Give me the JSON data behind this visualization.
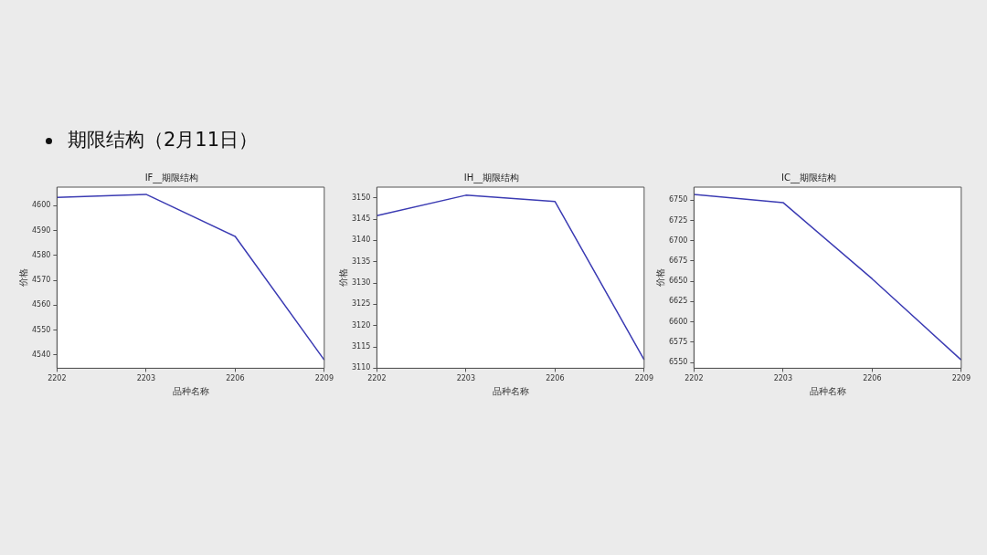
{
  "chart_data": [
    {
      "type": "line",
      "title": "IF__期限结构",
      "xlabel": "品种名称",
      "ylabel": "价格",
      "annotations": [
        "期限结构（2月11日）"
      ],
      "categories": [
        "2202",
        "2203",
        "2206",
        "2209"
      ],
      "series": [
        {
          "color": "#3b3bb3",
          "values": [
            4603.3,
            4604.5,
            4587.6,
            4538.0
          ]
        }
      ],
      "ylim": [
        4534.7,
        4607.4
      ],
      "yticks": [
        4540,
        4550,
        4560,
        4570,
        4580,
        4590,
        4600
      ],
      "grid": false,
      "legend": false
    },
    {
      "type": "line",
      "title": "IH__期限结构",
      "xlabel": "品种名称",
      "ylabel": "价格",
      "categories": [
        "2202",
        "2203",
        "2206",
        "2209"
      ],
      "series": [
        {
          "color": "#3b3bb3",
          "values": [
            3145.8,
            3150.6,
            3149.1,
            3112.0
          ]
        }
      ],
      "ylim": [
        3110,
        3152.5
      ],
      "yticks": [
        3110,
        3115,
        3120,
        3125,
        3130,
        3135,
        3140,
        3145,
        3150
      ],
      "grid": false,
      "legend": false
    },
    {
      "type": "line",
      "title": "IC__期限结构",
      "xlabel": "品种名称",
      "ylabel": "价格",
      "categories": [
        "2202",
        "2203",
        "2206",
        "2209"
      ],
      "series": [
        {
          "color": "#3b3bb3",
          "values": [
            6757,
            6747,
            6653,
            6553
          ]
        }
      ],
      "ylim": [
        6542.8,
        6766
      ],
      "yticks": [
        6550,
        6575,
        6600,
        6625,
        6650,
        6675,
        6700,
        6725,
        6750
      ],
      "grid": false,
      "legend": false
    }
  ]
}
